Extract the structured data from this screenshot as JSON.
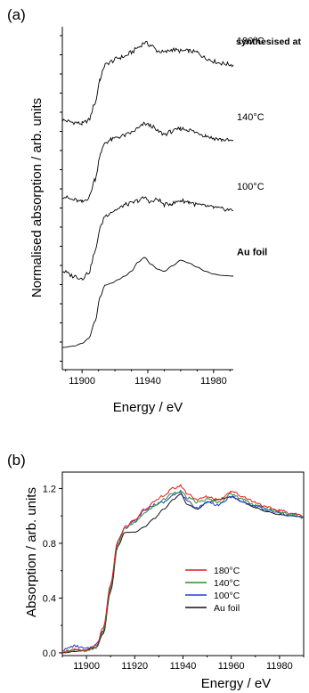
{
  "panels": {
    "a_label": "(a)",
    "b_label": "(b)"
  },
  "chart_data": [
    {
      "type": "line",
      "panel": "(a)",
      "xlabel": "Energy / eV",
      "ylabel": "Normalised absorption / arb. units",
      "xlim": [
        11888,
        11992
      ],
      "x_ticks": [
        "11900",
        "11940",
        "11980"
      ],
      "x_tick_values": [
        11900,
        11940,
        11980
      ],
      "header": "synthesised at",
      "stacked": true,
      "series": [
        {
          "name": "180°C",
          "x": [
            11888,
            11895,
            11900,
            11904,
            11908,
            11911,
            11914,
            11918,
            11922,
            11926,
            11930,
            11934,
            11938,
            11942,
            11946,
            11950,
            11955,
            11960,
            11965,
            11970,
            11975,
            11980,
            11985,
            11992
          ],
          "y": [
            3.3,
            3.27,
            3.25,
            3.3,
            3.55,
            3.9,
            4.1,
            4.15,
            4.2,
            4.22,
            4.28,
            4.35,
            4.42,
            4.38,
            4.3,
            4.28,
            4.32,
            4.3,
            4.3,
            4.28,
            4.2,
            4.15,
            4.12,
            4.1
          ]
        },
        {
          "name": "140°C",
          "x": [
            11888,
            11895,
            11900,
            11904,
            11908,
            11911,
            11914,
            11918,
            11922,
            11926,
            11930,
            11934,
            11938,
            11942,
            11946,
            11950,
            11955,
            11960,
            11965,
            11970,
            11975,
            11980,
            11985,
            11992
          ],
          "y": [
            2.2,
            2.15,
            2.12,
            2.18,
            2.45,
            2.8,
            2.98,
            3.02,
            3.06,
            3.08,
            3.12,
            3.18,
            3.25,
            3.22,
            3.14,
            3.1,
            3.14,
            3.18,
            3.16,
            3.12,
            3.08,
            3.04,
            3.02,
            3.0
          ]
        },
        {
          "name": "100°C",
          "x": [
            11888,
            11895,
            11900,
            11904,
            11908,
            11911,
            11914,
            11918,
            11922,
            11926,
            11930,
            11934,
            11938,
            11942,
            11946,
            11950,
            11955,
            11960,
            11965,
            11970,
            11975,
            11980,
            11985,
            11992
          ],
          "y": [
            1.12,
            1.05,
            1.02,
            1.1,
            1.4,
            1.75,
            1.92,
            1.98,
            2.02,
            2.08,
            2.1,
            2.14,
            2.18,
            2.12,
            2.16,
            2.08,
            2.1,
            2.14,
            2.12,
            2.08,
            2.06,
            2.04,
            2.02,
            2.0
          ]
        },
        {
          "name": "Au foil",
          "x": [
            11888,
            11895,
            11900,
            11904,
            11908,
            11911,
            11914,
            11918,
            11922,
            11926,
            11930,
            11934,
            11938,
            11942,
            11946,
            11950,
            11955,
            11960,
            11965,
            11970,
            11975,
            11980,
            11985,
            11992
          ],
          "y": [
            0.02,
            0.04,
            0.08,
            0.15,
            0.4,
            0.75,
            0.92,
            0.95,
            1.0,
            1.05,
            1.12,
            1.25,
            1.32,
            1.22,
            1.15,
            1.12,
            1.2,
            1.28,
            1.24,
            1.18,
            1.12,
            1.08,
            1.06,
            1.05
          ]
        }
      ]
    },
    {
      "type": "line",
      "panel": "(b)",
      "xlabel": "Energy / eV",
      "ylabel": "Absorption / arb. units",
      "xlim": [
        11890,
        11990
      ],
      "ylim": [
        -0.02,
        1.32
      ],
      "x_ticks": [
        "11900",
        "11920",
        "11940",
        "11960",
        "11980"
      ],
      "x_tick_values": [
        11900,
        11920,
        11940,
        11960,
        11980
      ],
      "y_ticks": [
        "0.0",
        "0.4",
        "0.8",
        "1.2"
      ],
      "y_tick_values": [
        0.0,
        0.4,
        0.8,
        1.2
      ],
      "legend_position": "bottom-right",
      "series": [
        {
          "name": "180°C",
          "color": "#e31a1c",
          "x": [
            11890,
            11895,
            11900,
            11904,
            11907,
            11910,
            11913,
            11916,
            11920,
            11924,
            11928,
            11932,
            11936,
            11939,
            11942,
            11946,
            11950,
            11955,
            11960,
            11965,
            11970,
            11975,
            11980,
            11985,
            11990
          ],
          "y": [
            0.01,
            0.02,
            0.02,
            0.05,
            0.18,
            0.5,
            0.82,
            0.92,
            0.97,
            1.05,
            1.1,
            1.15,
            1.2,
            1.22,
            1.16,
            1.12,
            1.14,
            1.12,
            1.18,
            1.14,
            1.1,
            1.06,
            1.04,
            1.02,
            1.0
          ]
        },
        {
          "name": "140°C",
          "color": "#2e8b2e",
          "x": [
            11890,
            11895,
            11900,
            11904,
            11907,
            11910,
            11913,
            11916,
            11920,
            11924,
            11928,
            11932,
            11936,
            11939,
            11942,
            11946,
            11950,
            11955,
            11960,
            11965,
            11970,
            11975,
            11980,
            11985,
            11990
          ],
          "y": [
            0.01,
            0.02,
            0.01,
            0.04,
            0.16,
            0.48,
            0.8,
            0.91,
            0.95,
            1.02,
            1.07,
            1.12,
            1.17,
            1.18,
            1.13,
            1.1,
            1.12,
            1.1,
            1.16,
            1.12,
            1.08,
            1.05,
            1.03,
            1.01,
            0.99
          ]
        },
        {
          "name": "100°C",
          "color": "#1f3fd6",
          "x": [
            11890,
            11895,
            11900,
            11904,
            11907,
            11910,
            11913,
            11916,
            11920,
            11924,
            11928,
            11932,
            11936,
            11939,
            11942,
            11946,
            11950,
            11955,
            11960,
            11965,
            11970,
            11975,
            11980,
            11985,
            11990
          ],
          "y": [
            0.02,
            0.05,
            0.03,
            0.06,
            0.17,
            0.49,
            0.82,
            0.92,
            0.96,
            1.04,
            1.08,
            1.1,
            1.16,
            1.17,
            1.1,
            1.06,
            1.1,
            1.08,
            1.14,
            1.1,
            1.07,
            1.04,
            1.02,
            1.0,
            0.99
          ]
        },
        {
          "name": "Au foil",
          "color": "#111111",
          "x": [
            11890,
            11895,
            11900,
            11904,
            11907,
            11910,
            11913,
            11916,
            11920,
            11924,
            11928,
            11932,
            11936,
            11939,
            11942,
            11946,
            11950,
            11955,
            11960,
            11965,
            11970,
            11975,
            11980,
            11985,
            11990
          ],
          "y": [
            0.0,
            0.01,
            0.02,
            0.04,
            0.14,
            0.45,
            0.78,
            0.88,
            0.88,
            0.92,
            0.98,
            1.05,
            1.12,
            1.16,
            1.08,
            1.05,
            1.1,
            1.12,
            1.14,
            1.1,
            1.06,
            1.03,
            1.01,
            1.0,
            0.99
          ]
        }
      ]
    }
  ]
}
